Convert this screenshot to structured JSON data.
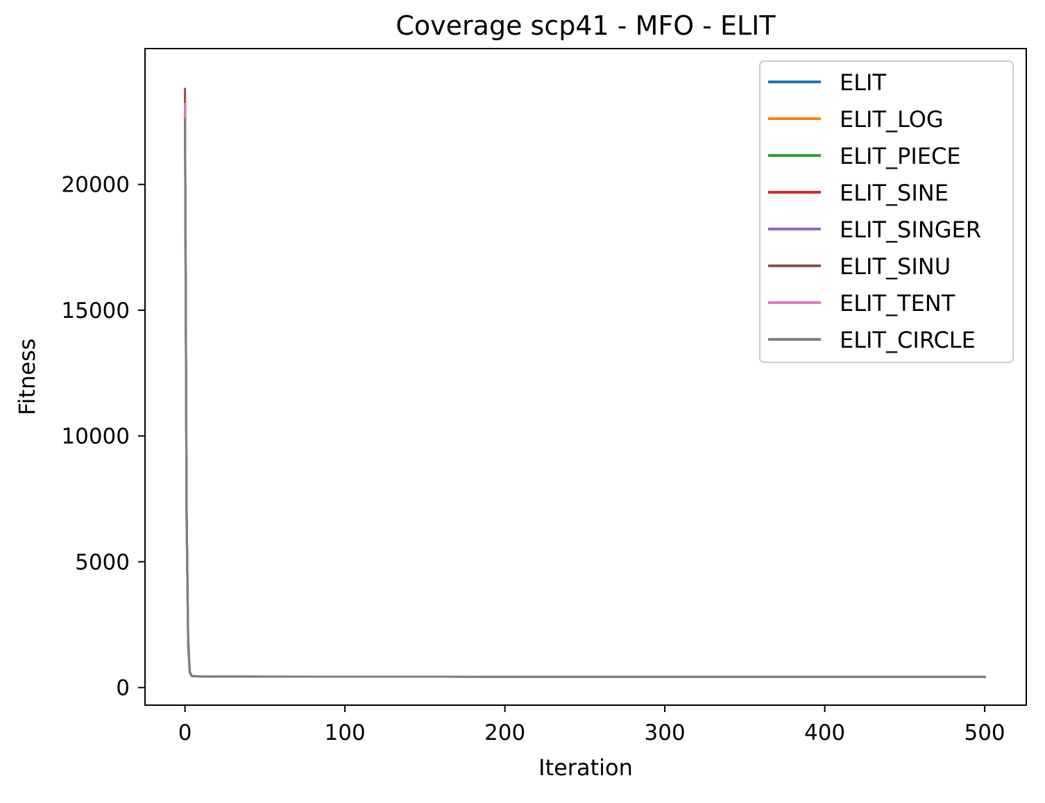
{
  "chart_data": {
    "type": "line",
    "title": "Coverage scp41 - MFO - ELIT",
    "xlabel": "Iteration",
    "ylabel": "Fitness",
    "xlim": [
      -25,
      526
    ],
    "ylim": [
      -700,
      25400
    ],
    "xticks": [
      0,
      100,
      200,
      300,
      400,
      500
    ],
    "yticks": [
      0,
      5000,
      10000,
      15000,
      20000
    ],
    "grid": false,
    "legend_position": "top-right",
    "series": [
      {
        "name": "ELIT",
        "color": "#1f77b4",
        "x": [
          0,
          1,
          2,
          3,
          4,
          5,
          10,
          50,
          100,
          200,
          300,
          400,
          500
        ],
        "y": [
          22800,
          7000,
          1700,
          600,
          470,
          450,
          440,
          432,
          430,
          428,
          427,
          426,
          425
        ]
      },
      {
        "name": "ELIT_LOG",
        "color": "#ff7f0e",
        "x": [
          0,
          1,
          2,
          3,
          4,
          5,
          10,
          50,
          100,
          200,
          300,
          400,
          500
        ],
        "y": [
          23300,
          6500,
          1800,
          650,
          480,
          455,
          442,
          433,
          430,
          428,
          427,
          426,
          425
        ]
      },
      {
        "name": "ELIT_PIECE",
        "color": "#2ca02c",
        "x": [
          0,
          1,
          2,
          3,
          4,
          5,
          10,
          50,
          100,
          200,
          300,
          400,
          500
        ],
        "y": [
          23000,
          6800,
          1600,
          580,
          465,
          448,
          440,
          432,
          430,
          428,
          427,
          426,
          425
        ]
      },
      {
        "name": "ELIT_SINE",
        "color": "#d62728",
        "x": [
          0,
          1,
          2,
          3,
          4,
          5,
          10,
          50,
          100,
          200,
          300,
          400,
          500
        ],
        "y": [
          23700,
          7200,
          1900,
          620,
          475,
          452,
          441,
          432,
          430,
          428,
          427,
          426,
          425
        ]
      },
      {
        "name": "ELIT_SINGER",
        "color": "#9467bd",
        "x": [
          0,
          1,
          2,
          3,
          4,
          5,
          10,
          50,
          100,
          200,
          300,
          400,
          500
        ],
        "y": [
          22900,
          6600,
          1650,
          590,
          468,
          450,
          440,
          432,
          430,
          428,
          427,
          426,
          425
        ]
      },
      {
        "name": "ELIT_SINU",
        "color": "#8c564b",
        "x": [
          0,
          1,
          2,
          3,
          4,
          5,
          10,
          50,
          100,
          200,
          300,
          400,
          500
        ],
        "y": [
          23800,
          7400,
          2000,
          640,
          480,
          455,
          442,
          433,
          430,
          428,
          427,
          426,
          425
        ]
      },
      {
        "name": "ELIT_TENT",
        "color": "#e377c2",
        "x": [
          0,
          1,
          2,
          3,
          4,
          5,
          10,
          50,
          100,
          200,
          300,
          400,
          500
        ],
        "y": [
          23200,
          6900,
          1750,
          610,
          472,
          451,
          441,
          432,
          430,
          428,
          427,
          426,
          425
        ]
      },
      {
        "name": "ELIT_CIRCLE",
        "color": "#7f7f7f",
        "x": [
          0,
          1,
          2,
          3,
          4,
          5,
          10,
          50,
          100,
          200,
          300,
          400,
          500
        ],
        "y": [
          22600,
          7100,
          1850,
          600,
          470,
          450,
          440,
          432,
          430,
          428,
          427,
          426,
          425
        ]
      }
    ]
  }
}
